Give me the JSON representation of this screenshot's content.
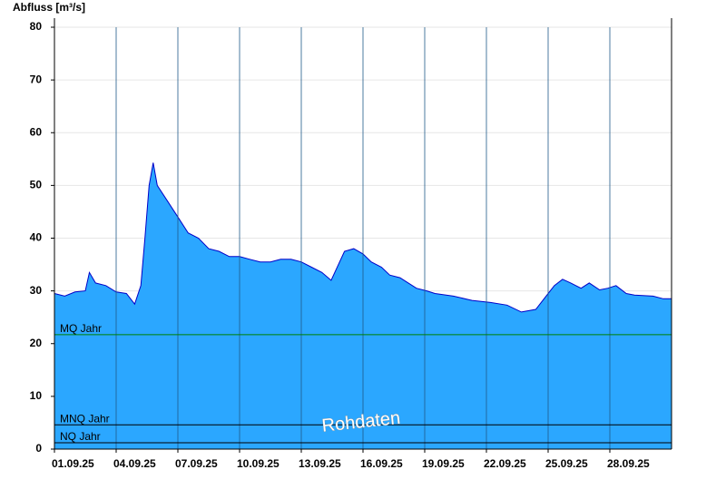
{
  "chart_data": {
    "type": "area",
    "y_label": "Abfluss [m³/s]",
    "x": [
      0,
      0.5,
      1,
      1.5,
      1.7,
      2,
      2.5,
      3,
      3.5,
      3.9,
      4.2,
      4.4,
      4.6,
      4.8,
      5,
      5.5,
      6,
      6.5,
      7,
      7.5,
      8,
      8.5,
      9,
      9.5,
      10,
      10.5,
      11,
      11.5,
      12,
      12.5,
      13,
      13.45,
      14.1,
      14.55,
      15,
      15.4,
      15.9,
      16.3,
      16.8,
      17.2,
      17.6,
      18.1,
      18.5,
      19.4,
      20.3,
      21.2,
      22,
      22.7,
      23.4,
      23.8,
      24.3,
      24.7,
      25.1,
      25.6,
      26,
      26.5,
      26.9,
      27.3,
      27.8,
      28.2,
      29.1,
      29.6,
      30
    ],
    "series": [
      {
        "name": "Abfluss",
        "color": "#2ba7ff",
        "line_color": "#0000c8",
        "values": [
          29.5,
          29,
          29.8,
          30,
          33.5,
          31.5,
          31,
          29.8,
          29.5,
          27.5,
          31,
          40,
          50,
          54.3,
          50,
          47,
          44,
          41,
          40,
          38,
          37.5,
          36.5,
          36.5,
          36,
          35.5,
          35.5,
          36,
          36,
          35.5,
          34.5,
          33.5,
          32,
          37.5,
          38,
          37,
          35.5,
          34.5,
          33,
          32.5,
          31.5,
          30.5,
          30,
          29.5,
          29,
          28.2,
          27.8,
          27.3,
          26,
          26.5,
          28.5,
          31,
          32.2,
          31.5,
          30.5,
          31.5,
          30.2,
          30.5,
          31,
          29.5,
          29.2,
          29,
          28.5,
          28.5
        ]
      }
    ],
    "xlim": [
      0,
      30
    ],
    "xticks": [
      {
        "value": 0,
        "label": "01.09.25"
      },
      {
        "value": 3,
        "label": "04.09.25"
      },
      {
        "value": 6,
        "label": "07.09.25"
      },
      {
        "value": 9,
        "label": "10.09.25"
      },
      {
        "value": 12,
        "label": "13.09.25"
      },
      {
        "value": 15,
        "label": "16.09.25"
      },
      {
        "value": 18,
        "label": "19.09.25"
      },
      {
        "value": 21,
        "label": "22.09.25"
      },
      {
        "value": 24,
        "label": "25.09.25"
      },
      {
        "value": 27,
        "label": "28.09.25"
      }
    ],
    "ylim": [
      0,
      80
    ],
    "yticks": [
      0,
      10,
      20,
      30,
      40,
      50,
      60,
      70,
      80
    ],
    "grid": true,
    "reference_lines": [
      {
        "label": "MQ Jahr",
        "value": 21.7,
        "color": "#008000"
      },
      {
        "label": "MNQ Jahr",
        "value": 4.6,
        "color": "#000000"
      },
      {
        "label": "NQ Jahr",
        "value": 1.2,
        "color": "#000000"
      }
    ],
    "watermark": "Rohdaten"
  }
}
